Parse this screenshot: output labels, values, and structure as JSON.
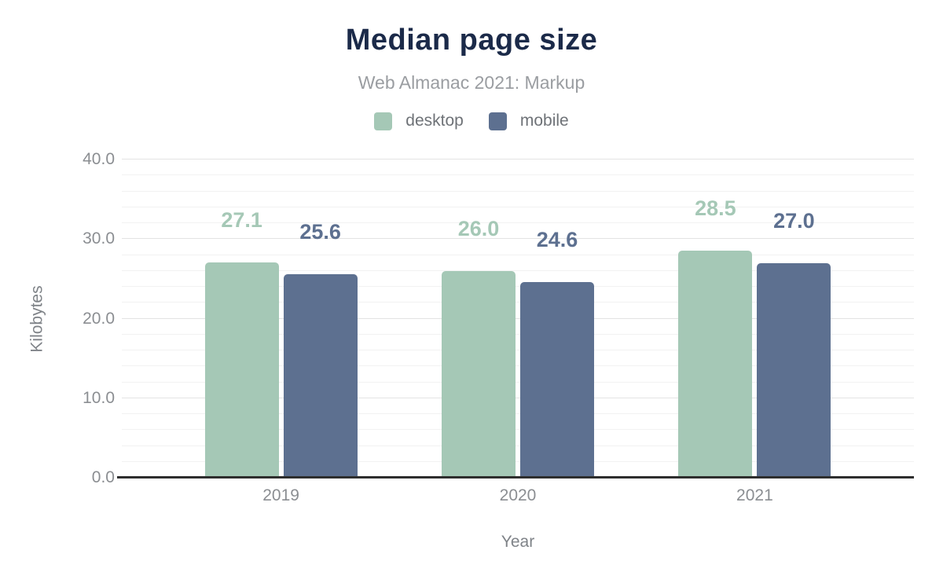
{
  "chart_data": {
    "type": "bar",
    "title": "Median page size",
    "subtitle": "Web Almanac 2021: Markup",
    "categories": [
      "2019",
      "2020",
      "2021"
    ],
    "series": [
      {
        "name": "desktop",
        "color": "#a5c8b6",
        "values": [
          27.1,
          26.0,
          28.5
        ]
      },
      {
        "name": "mobile",
        "color": "#5d7090",
        "values": [
          25.6,
          24.6,
          27.0
        ]
      }
    ],
    "xlabel": "Year",
    "ylabel": "Kilobytes",
    "ylim": [
      0,
      40
    ],
    "y_major_ticks": [
      0,
      10,
      20,
      30,
      40
    ],
    "y_minor_step": 2,
    "tick_decimals": 1,
    "value_decimals": 1,
    "grid": true,
    "legend_position": "top"
  },
  "colors": {
    "title": "#1b2a49",
    "subtitle": "#9a9da1",
    "legend_text": "#6e7277",
    "tick_label": "#8b8e92",
    "axis_title": "#7f8388",
    "axis_line": "#2e2e2e",
    "grid_major": "#e3e3e3",
    "grid_minor": "#f2f2f2",
    "background": "#ffffff"
  }
}
